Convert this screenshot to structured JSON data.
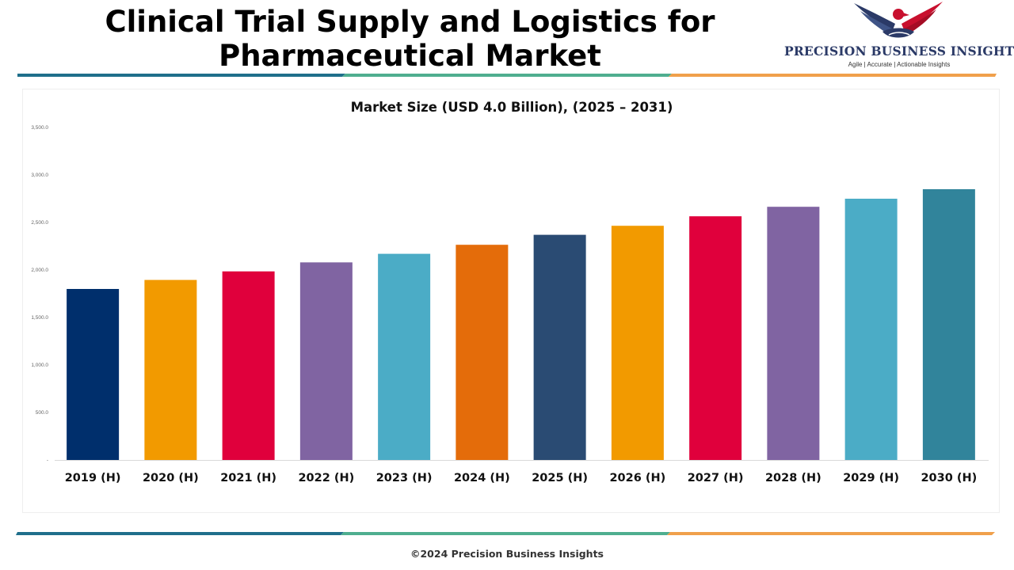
{
  "header": {
    "title": "Clinical Trial Supply and Logistics for Pharmaceutical Market"
  },
  "logo": {
    "name": "PRECISION BUSINESS INSIGHTS",
    "tagline": "Agile | Accurate | Actionable Insights",
    "icon": "eagle-handshake-icon"
  },
  "colors": {
    "stripe_blue": "#1f6f8b",
    "stripe_green": "#4fae8f",
    "stripe_orange": "#f0a04b"
  },
  "chart_data": {
    "type": "bar",
    "title": "Market Size (USD 4.0 Billion), (2025 – 2031)",
    "xlabel": "",
    "ylabel": "",
    "categories": [
      "2019 (H)",
      "2020 (H)",
      "2021 (H)",
      "2022 (H)",
      "2023 (H)",
      "2024 (H)",
      "2025 (H)",
      "2026 (H)",
      "2027 (H)",
      "2028 (H)",
      "2029 (H)",
      "2030 (H)"
    ],
    "values": [
      1800,
      1895,
      1985,
      2080,
      2170,
      2265,
      2370,
      2465,
      2565,
      2665,
      2750,
      2850
    ],
    "bar_colors": [
      "#002f6c",
      "#f29a00",
      "#e0003c",
      "#8064a2",
      "#4bacc6",
      "#e46c0a",
      "#2a4b73",
      "#f29a00",
      "#e0003c",
      "#8064a2",
      "#4bacc6",
      "#31849b"
    ],
    "ylim": [
      0,
      3500
    ],
    "yticks": [
      0,
      500,
      1000,
      1500,
      2000,
      2500,
      3000,
      3500
    ],
    "ytick_labels": [
      "-",
      "500.0",
      "1,000.0",
      "1,500.0",
      "2,000.0",
      "2,500.0",
      "3,000.0",
      "3,500.0"
    ],
    "grid": false,
    "legend": "none"
  },
  "footer": {
    "copyright": "©2024 Precision Business Insights"
  }
}
